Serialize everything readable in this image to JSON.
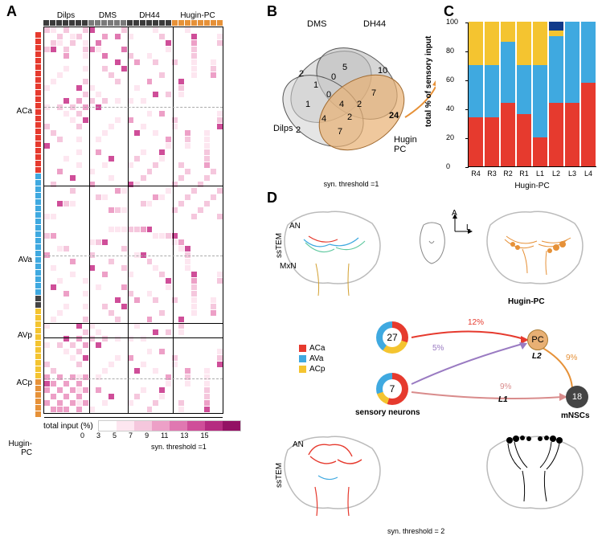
{
  "colors": {
    "ACa": "#e63a2e",
    "AVa": "#3fa9e0",
    "AVp": "#444444",
    "ACp": "#f4c430",
    "HuginPC": "#e69138",
    "col_dark": "#3b3b3b",
    "col_mid": "#7a7a7a",
    "col_light": "#e69138",
    "heatmap_scale": [
      "#ffffff",
      "#fde6f0",
      "#f5c7dd",
      "#eda0c7",
      "#e078b1",
      "#cf4e99",
      "#b52b80",
      "#931164",
      "#6c064a"
    ],
    "deep_blue": "#103a8a",
    "purple_arc": "#9a7bc2",
    "red_arc": "#e63a2e",
    "orange_arc": "#e69138"
  },
  "panelA": {
    "label": "A",
    "col_groups": [
      {
        "label": "Dilps",
        "count": 7,
        "color": "#3b3b3b"
      },
      {
        "label": "DMS",
        "count": 6,
        "color": "#7a7a7a"
      },
      {
        "label": "DH44",
        "count": 7,
        "color": "#3b3b3b"
      },
      {
        "label": "Hugin-PC",
        "count": 8,
        "color": "#e69138"
      }
    ],
    "row_groups": [
      {
        "label": "ACa",
        "count": 22,
        "color": "#e63a2e"
      },
      {
        "label": "AVa",
        "count": 19,
        "color": "#3fa9e0"
      },
      {
        "label": "AVp",
        "count": 2,
        "color": "#444444"
      },
      {
        "label": "ACp",
        "count": 11,
        "color": "#f4c430"
      },
      {
        "label": "Hugin-PC",
        "count": 6,
        "color": "#e69138"
      }
    ],
    "legend_label": "total input (%)",
    "legend_ticks": [
      "0",
      "3",
      "5",
      "7",
      "9",
      "11",
      "13",
      "15"
    ],
    "syn_threshold": "syn. threshold =1"
  },
  "panelB": {
    "label": "B",
    "sets": [
      "DMS",
      "DH44",
      "Dilps",
      "Hugin PC"
    ],
    "region_numbers": {
      "DMS_only": "2",
      "DH44_only": "10",
      "Dilps_only": "2",
      "Hugin_only": "24",
      "DMS_DH44": "5",
      "DMS_Dilps": "1",
      "DMS_Hugin": "0",
      "DH44_Hugin": "7",
      "Dilps_Hugin": "7",
      "Dilps_DH44": "1",
      "DMS_DH44_Hugin": "2",
      "DMS_Dilps_DH44": "0",
      "DMS_Dilps_Hugin": "2",
      "Dilps_DH44_Hugin": "4",
      "all": "4",
      "outer_left": "1"
    },
    "syn_threshold": "syn. threshold =1"
  },
  "panelC": {
    "label": "C",
    "yaxis": "total % of sensory input",
    "xaxis": "Hugin-PC",
    "yticks": [
      0,
      20,
      40,
      60,
      80,
      100
    ],
    "categories": [
      "R4",
      "R3",
      "R2",
      "R1",
      "L1",
      "L2",
      "L3",
      "L4"
    ],
    "stacks": [
      {
        "ACa": 34,
        "AVa": 36,
        "ACp": 30,
        "blue": 0
      },
      {
        "ACa": 34,
        "AVa": 36,
        "ACp": 30,
        "blue": 0
      },
      {
        "ACa": 44,
        "AVa": 42,
        "ACp": 14,
        "blue": 0
      },
      {
        "ACa": 36,
        "AVa": 34,
        "ACp": 30,
        "blue": 0
      },
      {
        "ACa": 20,
        "AVa": 50,
        "ACp": 30,
        "blue": 0
      },
      {
        "ACa": 44,
        "AVa": 46,
        "ACp": 4,
        "blue": 6
      },
      {
        "ACa": 44,
        "AVa": 56,
        "ACp": 0,
        "blue": 0
      },
      {
        "ACa": 58,
        "AVa": 42,
        "ACp": 0,
        "blue": 0
      }
    ]
  },
  "panelD": {
    "label": "D",
    "labels": {
      "ssTEM": "ssTEM",
      "AN": "AN",
      "MxN": "MxN",
      "HuginPC": "Hugin-PC",
      "mNSCs": "mNSCs",
      "sensory": "sensory neurons",
      "legend": [
        {
          "name": "ACa",
          "color": "#e63a2e"
        },
        {
          "name": "AVa",
          "color": "#3fa9e0"
        },
        {
          "name": "ACp",
          "color": "#f4c430"
        }
      ],
      "orientA": "A",
      "orientL": "L",
      "donut_top": "27",
      "donut_bot": "7",
      "PC": "PC",
      "L2": "L2",
      "L1": "L1",
      "eighteen": "18",
      "pct12": "12%",
      "pct5": "5%",
      "pct9a": "9%",
      "pct9b": "9%"
    },
    "syn_threshold": "syn. threshold = 2"
  }
}
